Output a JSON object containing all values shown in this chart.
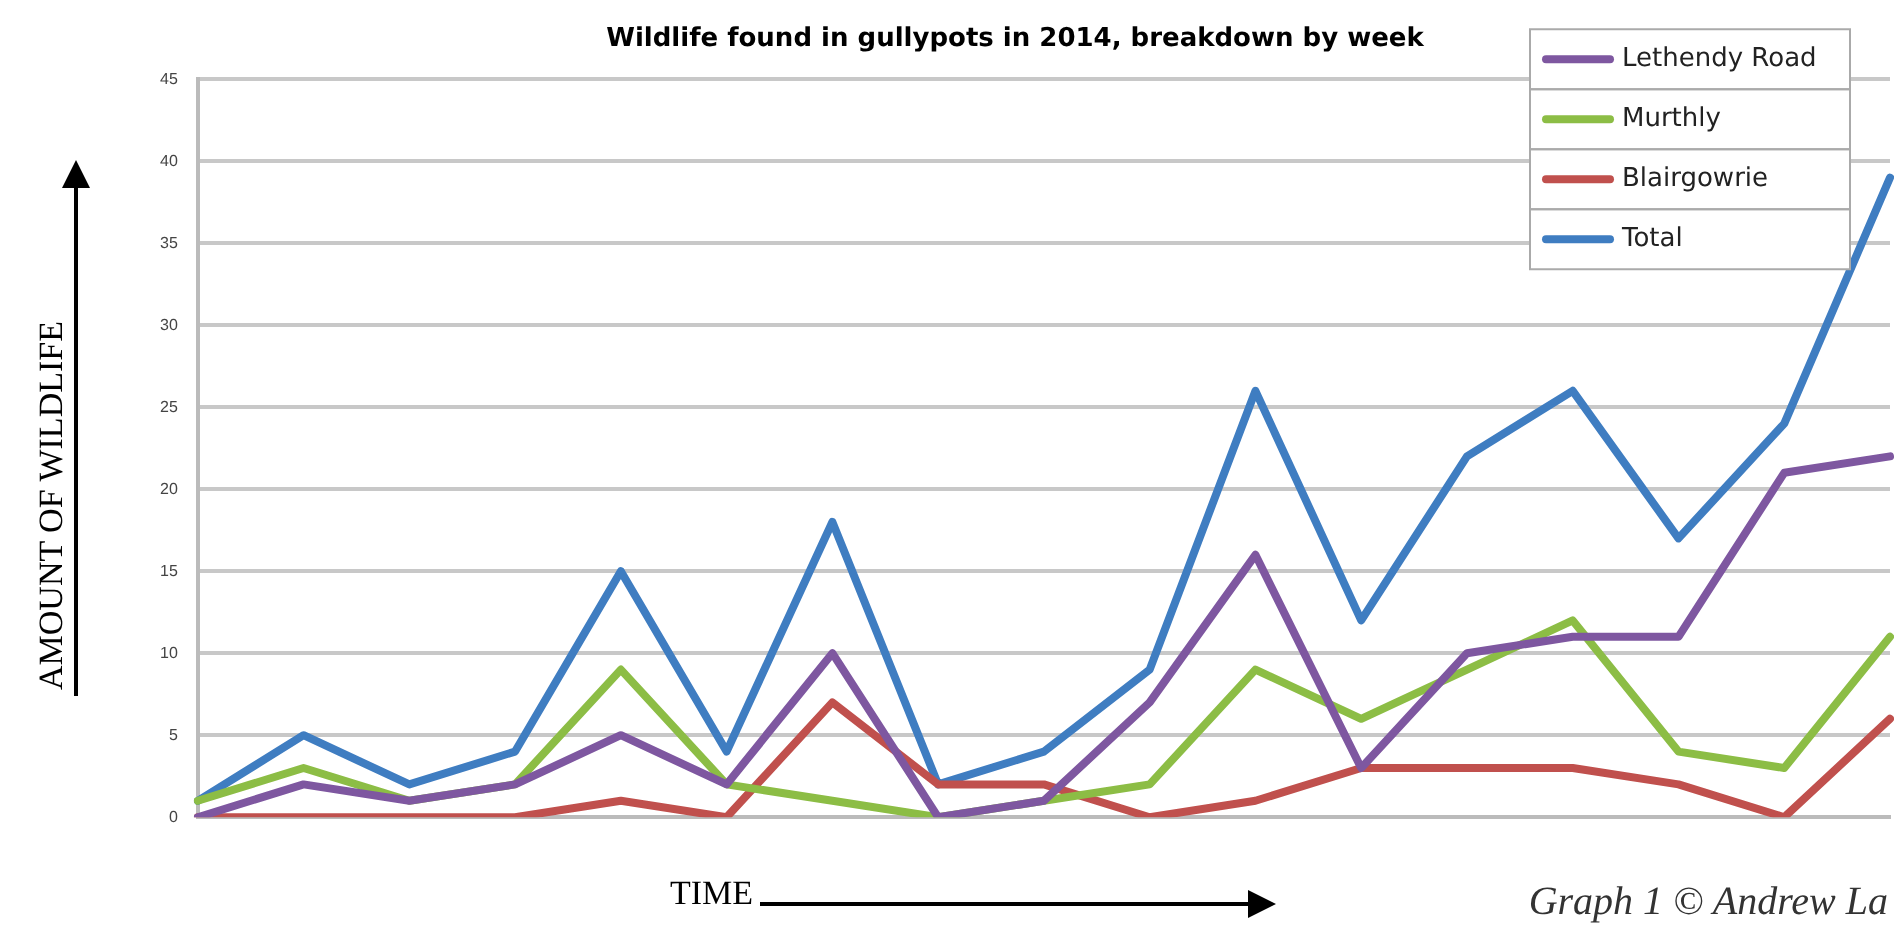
{
  "chart_data": {
    "type": "line",
    "title": "Wildlife found in gullypots in 2014, breakdown by week",
    "xlabel": "TIME",
    "ylabel": "AMOUNT OF WILDLIFE",
    "annotations": [
      "Graph 1 © Andrew La"
    ],
    "categories": [
      null,
      null,
      null,
      null,
      null,
      null,
      null,
      null,
      null,
      null,
      null,
      null,
      null,
      null,
      null,
      null,
      null
    ],
    "series": [
      {
        "name": "Lethendy Road",
        "color": "#7e57a0",
        "values": [
          0,
          2,
          1,
          2,
          5,
          2,
          10,
          0,
          1,
          7,
          16,
          3,
          10,
          11,
          11,
          21,
          22
        ]
      },
      {
        "name": "Murthly",
        "color": "#8cbd45",
        "values": [
          1,
          3,
          1,
          2,
          9,
          2,
          1,
          0,
          1,
          2,
          9,
          6,
          9,
          12,
          4,
          3,
          11
        ]
      },
      {
        "name": "Blairgowrie",
        "color": "#c0504d",
        "values": [
          0,
          0,
          0,
          0,
          1,
          0,
          7,
          2,
          2,
          0,
          1,
          3,
          3,
          3,
          2,
          0,
          6
        ]
      },
      {
        "name": "Total",
        "color": "#3f7dc1",
        "values": [
          1,
          5,
          2,
          4,
          15,
          4,
          18,
          2,
          4,
          9,
          26,
          12,
          22,
          26,
          17,
          24,
          39
        ]
      }
    ],
    "ylim": [
      0,
      45
    ],
    "yticks": [
      0,
      5,
      10,
      15,
      20,
      25,
      30,
      35,
      40,
      45
    ],
    "grid": "y",
    "legend": "top right",
    "marker": "none",
    "line_style": "solid"
  }
}
